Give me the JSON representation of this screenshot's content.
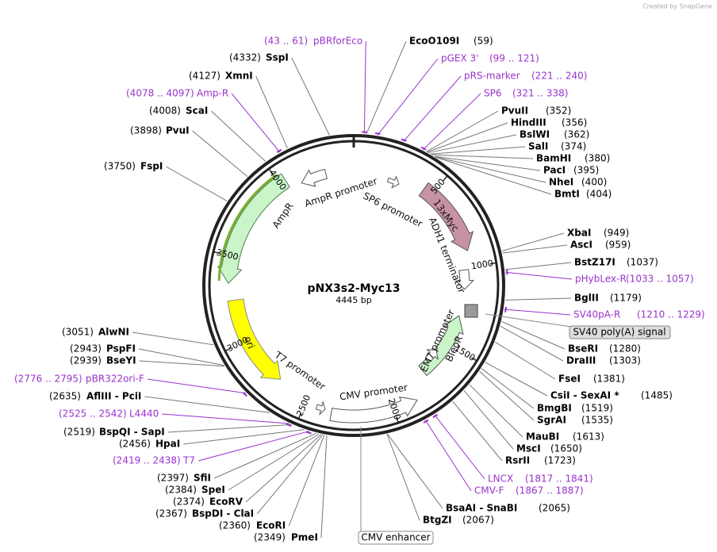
{
  "header": {
    "credit": "Created by SnapGene"
  },
  "map": {
    "title": "pNX3s2-Myc13",
    "length": "4445 bp",
    "ticks": [
      "500",
      "1000",
      "1500",
      "2000",
      "2500",
      "3000",
      "3500",
      "4000"
    ],
    "enzymes": [
      {
        "name": "EcoO109I",
        "position": "(59)"
      },
      {
        "name": "SspI",
        "position": "(4332)"
      },
      {
        "name": "XmnI",
        "position": "(4127)"
      },
      {
        "name": "ScaI",
        "position": "(4008)"
      },
      {
        "name": "PvuI",
        "position": "(3898)"
      },
      {
        "name": "FspI",
        "position": "(3750)"
      },
      {
        "name": "PvuII",
        "position": "(352)"
      },
      {
        "name": "HindIII",
        "position": "(356)"
      },
      {
        "name": "BslWI",
        "position": "(362)"
      },
      {
        "name": "SalI",
        "position": "(374)"
      },
      {
        "name": "BamHI",
        "position": "(380)"
      },
      {
        "name": "PacI",
        "position": "(395)"
      },
      {
        "name": "NheI",
        "position": "(400)"
      },
      {
        "name": "BmtI",
        "position": "(404)"
      },
      {
        "name": "XbaI",
        "position": "(949)"
      },
      {
        "name": "AscI",
        "position": "(959)"
      },
      {
        "name": "BstZ17I",
        "position": "(1037)"
      },
      {
        "name": "BglII",
        "position": "(1179)"
      },
      {
        "name": "BseRI",
        "position": "(1280)"
      },
      {
        "name": "DraIII",
        "position": "(1303)"
      },
      {
        "name": "FseI",
        "position": "(1381)"
      },
      {
        "name": "CsiI - SexAI *",
        "position": "(1485)"
      },
      {
        "name": "BmgBI",
        "position": "(1519)"
      },
      {
        "name": "SgrAI",
        "position": "(1535)"
      },
      {
        "name": "MauBI",
        "position": "(1613)"
      },
      {
        "name": "MscI",
        "position": "(1650)"
      },
      {
        "name": "RsrII",
        "position": "(1723)"
      },
      {
        "name": "BsaAI - SnaBI",
        "position": "(2065)"
      },
      {
        "name": "BtgZI",
        "position": "(2067)"
      },
      {
        "name": "PmeI",
        "position": "(2349)"
      },
      {
        "name": "EcoRI",
        "position": "(2360)"
      },
      {
        "name": "BspDI - ClaI",
        "position": "(2367)"
      },
      {
        "name": "EcoRV",
        "position": "(2374)"
      },
      {
        "name": "SpeI",
        "position": "(2384)"
      },
      {
        "name": "SfiI",
        "position": "(2397)"
      },
      {
        "name": "HpaI",
        "position": "(2456)"
      },
      {
        "name": "BspQI - SapI",
        "position": "(2519)"
      },
      {
        "name": "AflIII - PciI",
        "position": "(2635)"
      },
      {
        "name": "BseYI",
        "position": "(2939)"
      },
      {
        "name": "PspFI",
        "position": "(2943)"
      },
      {
        "name": "AlwNI",
        "position": "(3051)"
      }
    ],
    "primers": [
      {
        "name": "pBRforEco",
        "range": "(43 .. 61)"
      },
      {
        "name": "pGEX 3'",
        "range": "(99 .. 121)"
      },
      {
        "name": "pRS-marker",
        "range": "(221 .. 240)"
      },
      {
        "name": "SP6",
        "range": "(321 .. 338)"
      },
      {
        "name": "Amp-R",
        "range": "(4078 .. 4097)"
      },
      {
        "name": "pHybLex-R",
        "range": "(1033 .. 1057)"
      },
      {
        "name": "SV40pA-R",
        "range": "(1210 .. 1229)"
      },
      {
        "name": "pBR322ori-F",
        "range": "(2776 .. 2795)"
      },
      {
        "name": "L4440",
        "range": "(2525 .. 2542)"
      },
      {
        "name": "T7",
        "range": "(2419 .. 2438)"
      },
      {
        "name": "LNCX",
        "range": "(1817 .. 1841)"
      },
      {
        "name": "CMV-F",
        "range": "(1867 .. 1887)"
      }
    ],
    "features": [
      "AmpR promoter",
      "AmpR",
      "SP6 promoter",
      "13xMyc",
      "ADH1 terminator",
      "ori",
      "T7 promoter",
      "CMV promoter",
      "EM7 promoter",
      "BleoR"
    ],
    "boxed_features": [
      "SV40 poly(A) signal",
      "CMV enhancer"
    ]
  }
}
